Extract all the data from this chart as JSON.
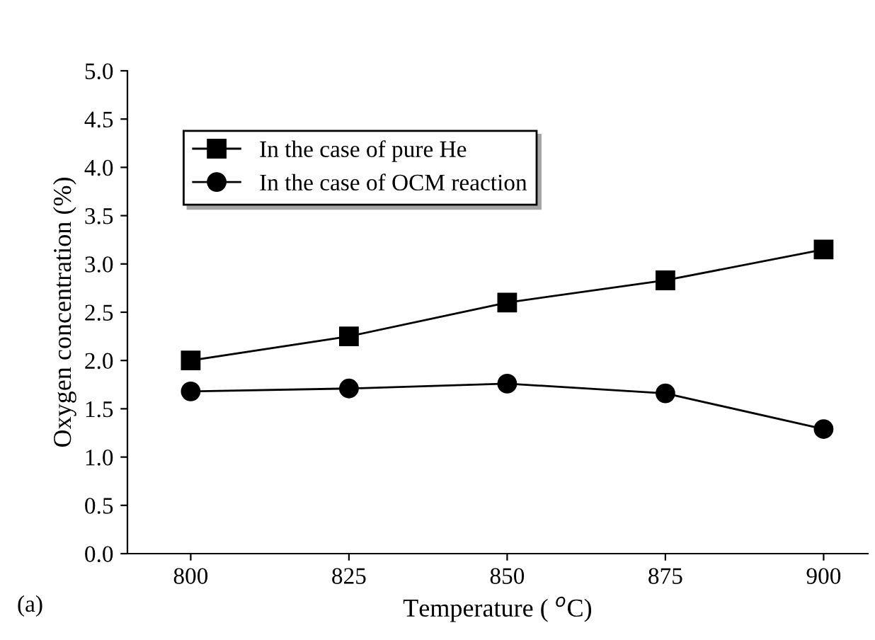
{
  "chart_data": {
    "type": "line",
    "xlabel": "Temperature ( $^{o}$C)",
    "ylabel": "Oxygen concentration (%)",
    "x": [
      800,
      825,
      850,
      875,
      900
    ],
    "series": [
      {
        "name": "In the case of pure He",
        "color": "#000000",
        "marker": "square",
        "values": [
          2.0,
          2.25,
          2.6,
          2.83,
          3.15
        ]
      },
      {
        "name": "In the case of OCM reaction",
        "color": "#000000",
        "marker": "circle",
        "values": [
          1.68,
          1.71,
          1.76,
          1.66,
          1.29
        ]
      }
    ],
    "xlim": [
      790,
      907
    ],
    "xticks": [
      800,
      825,
      850,
      875,
      900
    ],
    "ylim": [
      0,
      5
    ],
    "yticks": [
      {
        "value": 0,
        "label": "0.0"
      },
      {
        "value": 0.5,
        "label": "0.5"
      },
      {
        "value": 1,
        "label": "1.0"
      },
      {
        "value": 1.5,
        "label": "1.5"
      },
      {
        "value": 2,
        "label": "2.0"
      },
      {
        "value": 2.5,
        "label": "2.5"
      },
      {
        "value": 3,
        "label": "3.0"
      },
      {
        "value": 3.5,
        "label": "3.5"
      },
      {
        "value": 4,
        "label": "4.0"
      },
      {
        "value": 4.5,
        "label": "4.5"
      },
      {
        "value": 5,
        "label": "5.0"
      }
    ],
    "annotations": [
      "(a)"
    ],
    "legend": "top left",
    "grid": false,
    "line_style": "solid"
  }
}
